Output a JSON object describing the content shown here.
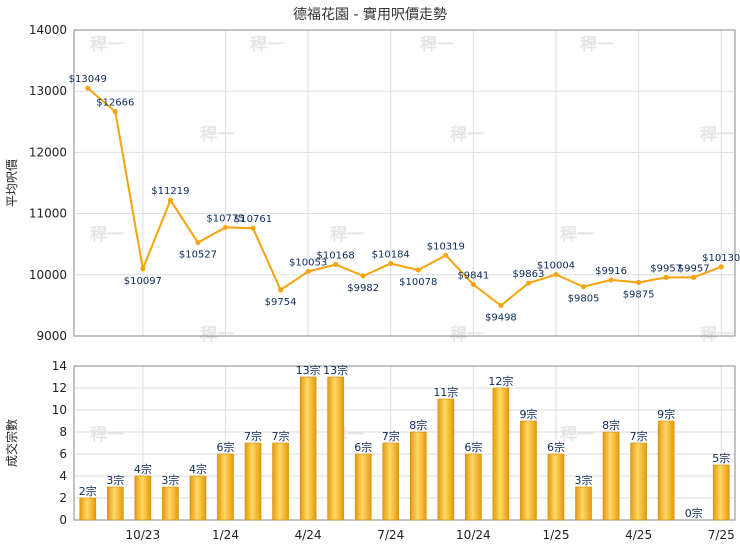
{
  "title": "德福花園 - 實用呎價走勢",
  "watermark": "稈一",
  "chart_data": [
    {
      "type": "line",
      "ylabel": "平均呎價",
      "ylim": [
        9000,
        14000
      ],
      "yticks": [
        9000,
        10000,
        11000,
        12000,
        13000,
        14000
      ],
      "grid": true,
      "line_color": "#f5a30a",
      "points": [
        {
          "label": "$13049",
          "value": 13049
        },
        {
          "label": "$12666",
          "value": 12666
        },
        {
          "label": "$10097",
          "value": 10097
        },
        {
          "label": "$11219",
          "value": 11219
        },
        {
          "label": "$10527",
          "value": 10527
        },
        {
          "label": "$10775",
          "value": 10775
        },
        {
          "label": "$10761",
          "value": 10761
        },
        {
          "label": "$9754",
          "value": 9754
        },
        {
          "label": "$10053",
          "value": 10053
        },
        {
          "label": "$10168",
          "value": 10168
        },
        {
          "label": "$9982",
          "value": 9982
        },
        {
          "label": "$10184",
          "value": 10184
        },
        {
          "label": "$10078",
          "value": 10078
        },
        {
          "label": "$10319",
          "value": 10319
        },
        {
          "label": "$9841",
          "value": 9841
        },
        {
          "label": "$9498",
          "value": 9498
        },
        {
          "label": "$9863",
          "value": 9863
        },
        {
          "label": "$10004",
          "value": 10004
        },
        {
          "label": "$9805",
          "value": 9805
        },
        {
          "label": "$9916",
          "value": 9916
        },
        {
          "label": "$9875",
          "value": 9875
        },
        {
          "label": "$9957",
          "value": 9957
        },
        {
          "label": "$9957",
          "value": 9957
        },
        {
          "label": "$10130",
          "value": 10130
        }
      ]
    },
    {
      "type": "bar",
      "ylabel": "成交宗數",
      "ylim": [
        0,
        14
      ],
      "yticks": [
        0,
        2,
        4,
        6,
        8,
        10,
        12,
        14
      ],
      "grid": true,
      "bar_color": "#f2b01e",
      "x_tick_labels": [
        {
          "label": "10/23",
          "index": 2
        },
        {
          "label": "1/24",
          "index": 5
        },
        {
          "label": "4/24",
          "index": 8
        },
        {
          "label": "7/24",
          "index": 11
        },
        {
          "label": "10/24",
          "index": 14
        },
        {
          "label": "1/25",
          "index": 17
        },
        {
          "label": "4/25",
          "index": 20
        },
        {
          "label": "7/25",
          "index": 23
        }
      ],
      "bars": [
        {
          "label": "2宗",
          "value": 2
        },
        {
          "label": "3宗",
          "value": 3
        },
        {
          "label": "4宗",
          "value": 4
        },
        {
          "label": "3宗",
          "value": 3
        },
        {
          "label": "4宗",
          "value": 4
        },
        {
          "label": "6宗",
          "value": 6
        },
        {
          "label": "7宗",
          "value": 7
        },
        {
          "label": "7宗",
          "value": 7
        },
        {
          "label": "13宗",
          "value": 13
        },
        {
          "label": "13宗",
          "value": 13
        },
        {
          "label": "6宗",
          "value": 6
        },
        {
          "label": "7宗",
          "value": 7
        },
        {
          "label": "8宗",
          "value": 8
        },
        {
          "label": "11宗",
          "value": 11
        },
        {
          "label": "6宗",
          "value": 6
        },
        {
          "label": "12宗",
          "value": 12
        },
        {
          "label": "9宗",
          "value": 9
        },
        {
          "label": "6宗",
          "value": 6
        },
        {
          "label": "3宗",
          "value": 3
        },
        {
          "label": "8宗",
          "value": 8
        },
        {
          "label": "7宗",
          "value": 7
        },
        {
          "label": "9宗",
          "value": 9
        },
        {
          "label": "0宗",
          "value": 0
        },
        {
          "label": "5宗",
          "value": 5
        }
      ]
    }
  ]
}
